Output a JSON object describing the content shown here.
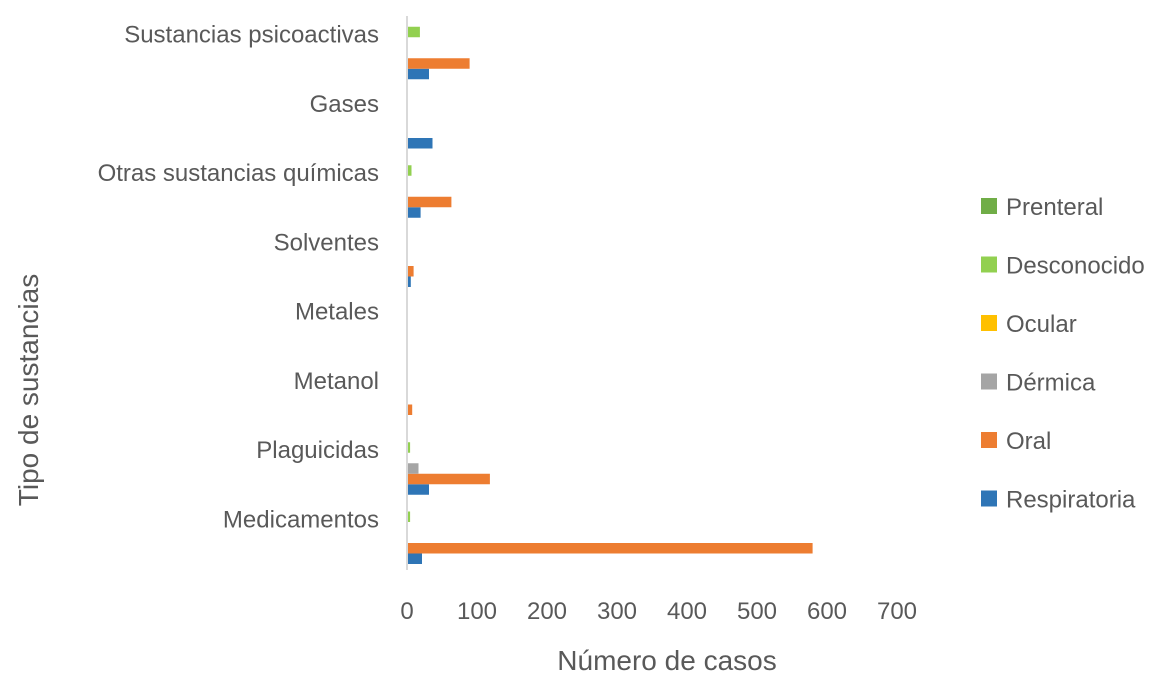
{
  "chart_data": {
    "type": "bar",
    "orientation": "horizontal",
    "categories": [
      "Medicamentos",
      "Plaguicidas",
      "Metanol",
      "Metales",
      "Solventes",
      "Otras sustancias químicas",
      "Gases",
      "Sustancias psicoactivas"
    ],
    "series": [
      {
        "name": "Respiratoria",
        "color": "#2E75B6",
        "values": [
          20,
          30,
          0,
          0,
          4,
          18,
          35,
          30
        ]
      },
      {
        "name": "Oral",
        "color": "#ED7D31",
        "values": [
          578,
          117,
          6,
          0,
          8,
          62,
          0,
          88
        ]
      },
      {
        "name": "Dérmica",
        "color": "#A5A5A5",
        "values": [
          0,
          15,
          0,
          0,
          0,
          0,
          0,
          0
        ]
      },
      {
        "name": "Ocular",
        "color": "#FFC000",
        "values": [
          0,
          0,
          0,
          0,
          0,
          0,
          0,
          0
        ]
      },
      {
        "name": "Desconocido",
        "color": "#92D050",
        "values": [
          3,
          3,
          0,
          0,
          0,
          5,
          0,
          17
        ]
      },
      {
        "name": "Prenteral",
        "color": "#70AD47",
        "values": [
          0,
          0,
          0,
          0,
          0,
          0,
          0,
          0
        ]
      }
    ],
    "xlabel": "Número de casos",
    "ylabel": "Tipo de sustancias",
    "xlim": [
      0,
      700
    ],
    "xticks": [
      0,
      100,
      200,
      300,
      400,
      500,
      600,
      700
    ],
    "grid": false,
    "legend": "right"
  }
}
